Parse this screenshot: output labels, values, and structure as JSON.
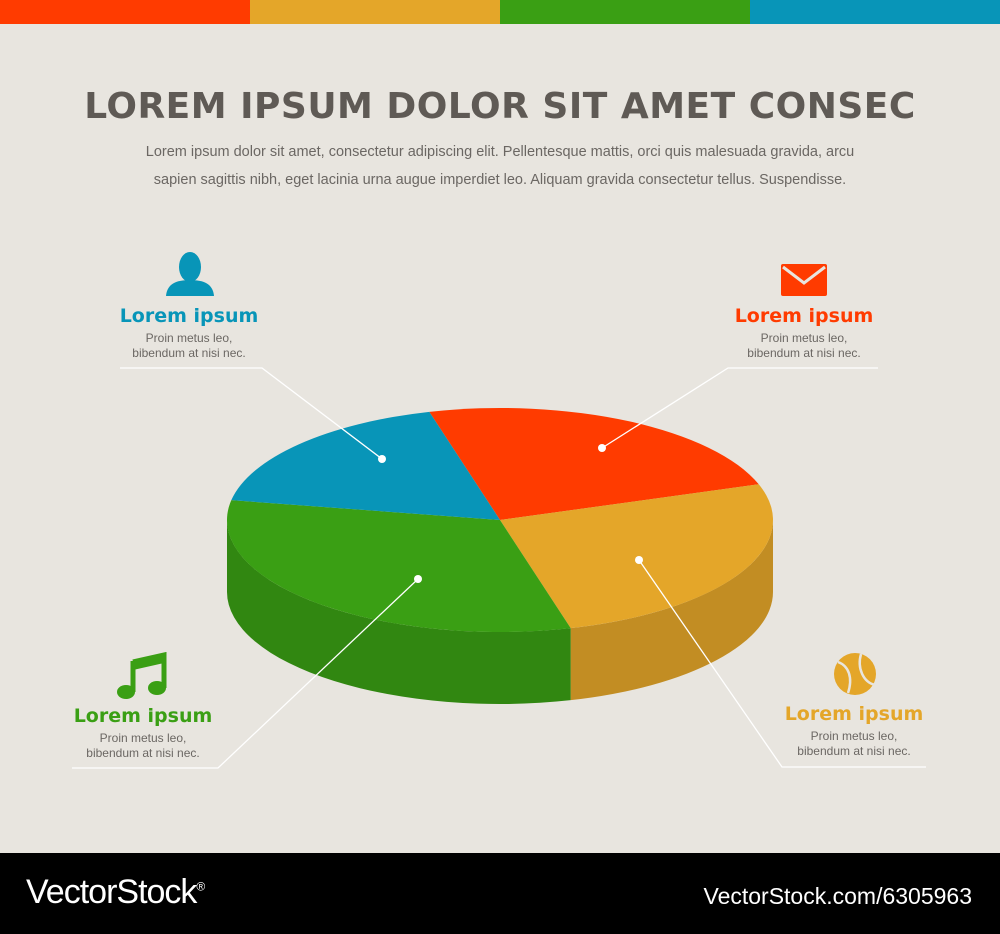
{
  "colors": {
    "background": "#e8e5df",
    "red": "#ff3b00",
    "orange": "#e4a629",
    "green": "#3a9f14",
    "blue": "#0895b8",
    "text": "#5f5a55"
  },
  "top_bar_colors": [
    "#ff3b00",
    "#e4a629",
    "#3a9f14",
    "#0895b8"
  ],
  "header": {
    "title": "LOREM IPSUM DOLOR SIT AMET CONSEC",
    "subtitle_line1": "Lorem ipsum dolor sit amet, consectetur adipiscing elit. Pellentesque mattis, orci quis malesuada gravida, arcu",
    "subtitle_line2": "sapien sagittis nibh, eget lacinia urna augue imperdiet leo. Aliquam gravida consectetur tellus. Suspendisse."
  },
  "chart_data": {
    "type": "pie",
    "title": "",
    "slices": [
      {
        "name": "Lorem ipsum",
        "value": 18,
        "color": "#0895b8",
        "icon": "person-icon",
        "description": [
          "Proin metus leo,",
          "bibendum at nisi nec."
        ]
      },
      {
        "name": "Lorem ipsum",
        "value": 24,
        "color": "#ff3b00",
        "icon": "envelope-icon",
        "description": [
          "Proin metus leo,",
          "bibendum at nisi nec."
        ]
      },
      {
        "name": "Lorem ipsum",
        "value": 26,
        "color": "#e4a629",
        "icon": "ball-icon",
        "description": [
          "Proin metus leo,",
          "bibendum at nisi nec."
        ]
      },
      {
        "name": "Lorem ipsum",
        "value": 32,
        "color": "#3a9f14",
        "icon": "music-note-icon",
        "description": [
          "Proin metus leo,",
          "bibendum at nisi nec."
        ]
      }
    ]
  },
  "footer": {
    "brand": "VectorStock",
    "brand_mark": "®",
    "reference": "VectorStock.com/6305963"
  }
}
